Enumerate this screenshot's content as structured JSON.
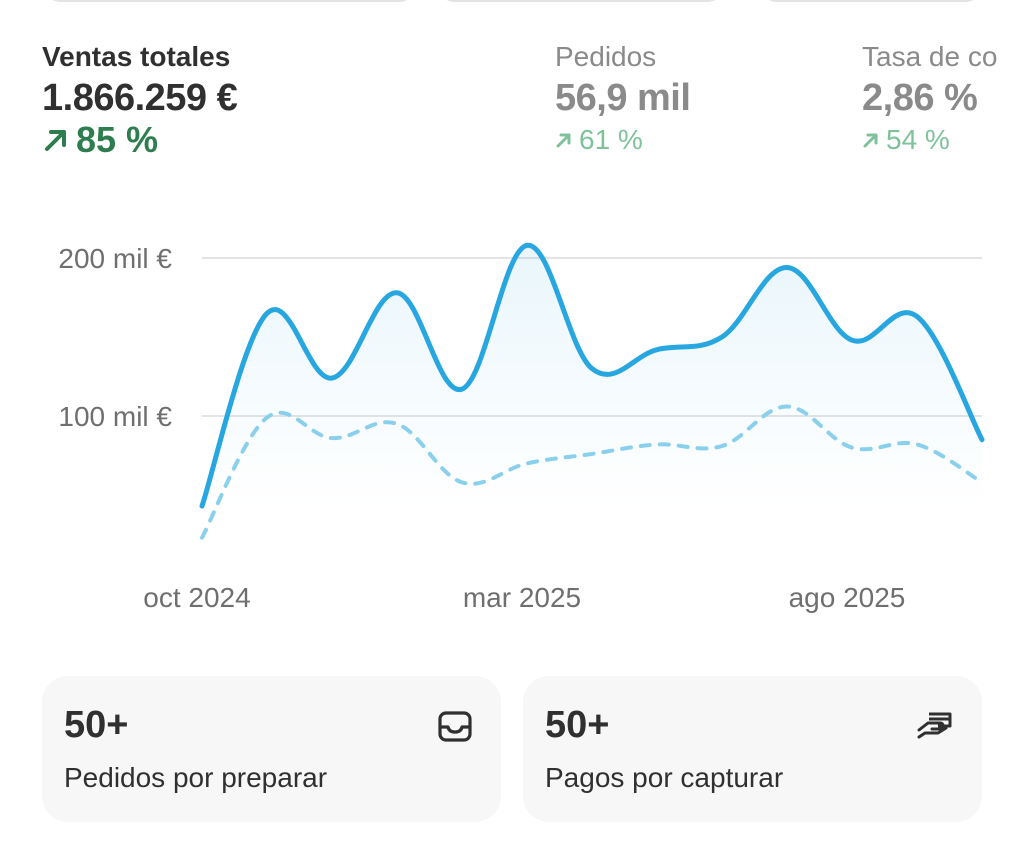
{
  "metrics": [
    {
      "label": "Ventas totales",
      "value": "1.866.259 €",
      "change": "85 %"
    },
    {
      "label": "Pedidos",
      "value": "56,9 mil",
      "change": "61 %"
    },
    {
      "label": "Tasa de co",
      "value": "2,86 %",
      "change": "54 %"
    }
  ],
  "chart_data": {
    "type": "line",
    "y_ticks": [
      "200 mil €",
      "100 mil €"
    ],
    "y_tick_values": [
      200000,
      100000
    ],
    "x_labels": [
      "oct 2024",
      "mar 2025",
      "ago 2025"
    ],
    "ylim": [
      0,
      230000
    ],
    "grid": true,
    "series": [
      {
        "style": "solid",
        "color": "#27a6e0",
        "values": [
          43000,
          165000,
          124000,
          178000,
          117000,
          208000,
          130000,
          142000,
          150000,
          194000,
          148000,
          163000,
          85000
        ]
      },
      {
        "style": "dashed",
        "color": "#8ad0ec",
        "values": [
          23000,
          99000,
          86000,
          95000,
          58000,
          70000,
          76000,
          82000,
          81000,
          106000,
          80000,
          82000,
          58000
        ]
      }
    ]
  },
  "cards": [
    {
      "count": "50+",
      "label": "Pedidos por preparar",
      "icon": "inbox-icon"
    },
    {
      "count": "50+",
      "label": "Pagos por capturar",
      "icon": "hand-card-icon"
    }
  ],
  "colors": {
    "accent": "#27a6e0",
    "positive": "#2e7d4f",
    "positive_muted": "#7fc29a"
  }
}
